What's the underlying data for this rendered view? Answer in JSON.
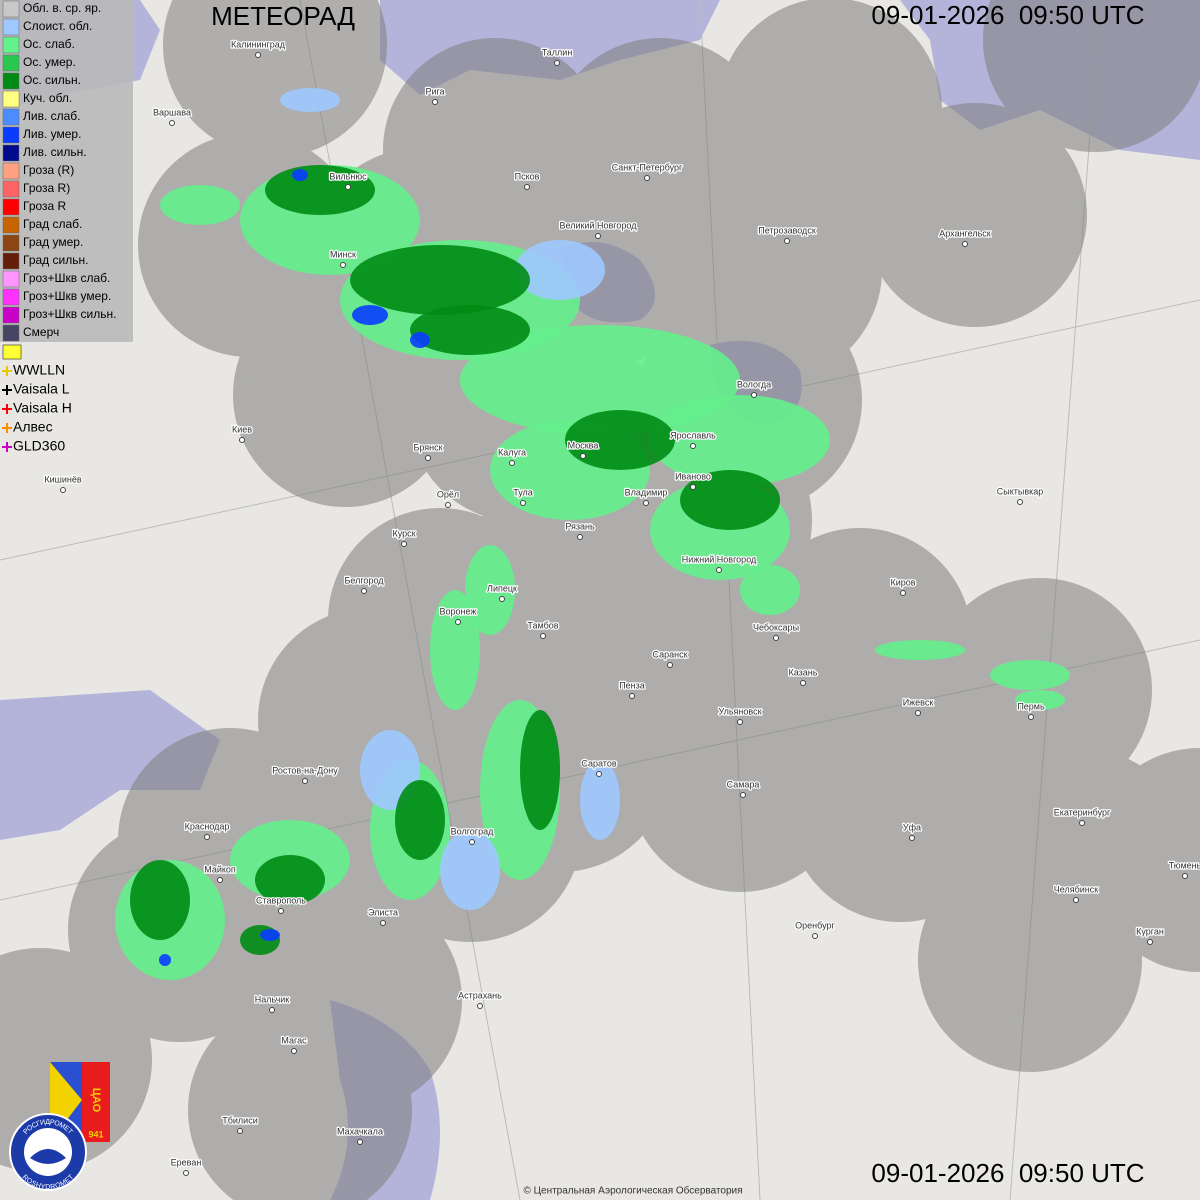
{
  "header": {
    "title": "МЕТЕОРАД",
    "timestamp_top": "09-01-2026  09:50 UTC",
    "timestamp_bottom": "09-01-2026  09:50 UTC"
  },
  "legend": {
    "items": [
      {
        "label": "Обл. в. ср. яр.",
        "color": "#c8c8c8"
      },
      {
        "label": "Слоист. обл.",
        "color": "#9ec8ff"
      },
      {
        "label": "Ос. слаб.",
        "color": "#64f08c"
      },
      {
        "label": "Ос. умер.",
        "color": "#28c850"
      },
      {
        "label": "Ос. сильн.",
        "color": "#008c14"
      },
      {
        "label": "Куч. обл.",
        "color": "#ffff80"
      },
      {
        "label": "Лив. слаб.",
        "color": "#4d8cff"
      },
      {
        "label": "Лив. умер.",
        "color": "#0a3cff"
      },
      {
        "label": "Лив. сильн.",
        "color": "#000a8c"
      },
      {
        "label": "Гроза (R)",
        "color": "#ffa080"
      },
      {
        "label": "Гроза R)",
        "color": "#ff6464"
      },
      {
        "label": "Гроза R",
        "color": "#ff0000"
      },
      {
        "label": "Град слаб.",
        "color": "#c86400"
      },
      {
        "label": "Град умер.",
        "color": "#8c4614"
      },
      {
        "label": "Град сильн.",
        "color": "#641e0a"
      },
      {
        "label": "Гроз+Шкв слаб.",
        "color": "#ff96ff"
      },
      {
        "label": "Гроз+Шкв умер.",
        "color": "#ff32ff"
      },
      {
        "label": "Гроз+Шкв сильн.",
        "color": "#c800c8"
      },
      {
        "label": "Смерч",
        "color": "#464664"
      }
    ],
    "lightning": [
      {
        "label": "WWLLN",
        "color": "#e6c800"
      },
      {
        "label": "Vaisala L",
        "color": "#000000"
      },
      {
        "label": "Vaisala H",
        "color": "#ff0000"
      },
      {
        "label": "Алвес",
        "color": "#ff8c00"
      },
      {
        "label": "GLD360",
        "color": "#c800c8"
      }
    ]
  },
  "cities": [
    "Калининград",
    "Таллин",
    "Рига",
    "Варшава",
    "Вильнюс",
    "Псков",
    "Санкт-Петербург",
    "Петрозаводск",
    "Архангельск",
    "Великий Новгород",
    "Минск",
    "Вологда",
    "Киев",
    "Брянск",
    "Москва",
    "Ярославль",
    "Калуга",
    "Кишинёв",
    "Тула",
    "Иваново",
    "Владимир",
    "Орёл",
    "Сыктывкар",
    "Рязань",
    "Курск",
    "Нижний Новгород",
    "Белгород",
    "Липецк",
    "Киров",
    "Воронеж",
    "Тамбов",
    "Чебоксары",
    "Саранск",
    "Казань",
    "Пенза",
    "Ижевск",
    "Пермь",
    "Ульяновск",
    "Ростов-на-Дону",
    "Саратов",
    "Самара",
    "Екатеринбург",
    "Краснодар",
    "Уфа",
    "Волгоград",
    "Майкоп",
    "Челябинск",
    "Ставрополь",
    "Элиста",
    "Оренбург",
    "Курган",
    "Тюмень",
    "Астрахань",
    "Нальчик",
    "Магас",
    "Тбилиси",
    "Махачкала",
    "Ереван"
  ],
  "logo": {
    "org": "ЦАО",
    "number": "941",
    "name_ru": "РОСГИДРОМЕТ",
    "name_en": "ROSHYDROMET"
  },
  "footer": {
    "copyright": "© Центральная Аэрологическая Обсерватория"
  }
}
